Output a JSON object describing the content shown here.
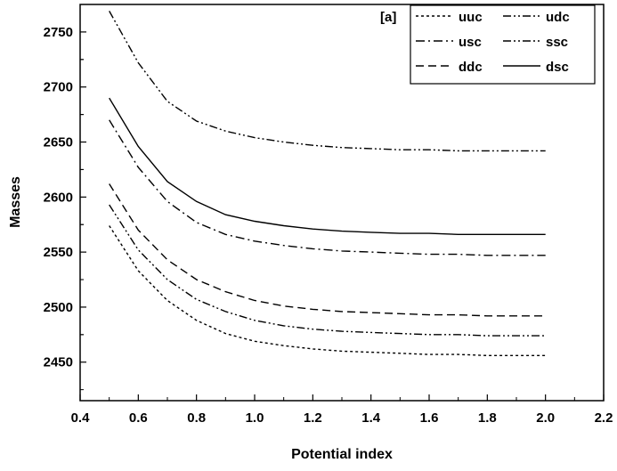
{
  "chart_data": {
    "type": "line",
    "panel_label": "[a]",
    "xlabel": "Potential index",
    "ylabel": "Masses",
    "xlim": [
      0.4,
      2.2
    ],
    "ylim": [
      2415,
      2775
    ],
    "x_ticks": [
      "0.4",
      "0.6",
      "0.8",
      "1.0",
      "1.2",
      "1.4",
      "1.6",
      "1.8",
      "2.0",
      "2.2"
    ],
    "y_ticks": [
      "2450",
      "2500",
      "2550",
      "2600",
      "2650",
      "2700",
      "2750"
    ],
    "grid": false,
    "legend_position": "top-right",
    "x": [
      0.5,
      0.6,
      0.7,
      0.8,
      0.9,
      1.0,
      1.1,
      1.2,
      1.3,
      1.4,
      1.5,
      1.6,
      1.7,
      1.8,
      1.9,
      2.0
    ],
    "series": [
      {
        "name": "uuc",
        "dash": "3,3",
        "values": [
          2574,
          2533,
          2506,
          2488,
          2476,
          2469,
          2465,
          2462,
          2460,
          2459,
          2458,
          2457,
          2457,
          2456,
          2456,
          2456
        ]
      },
      {
        "name": "udc",
        "dash": "9,3,2,3,2,3",
        "values": [
          2593,
          2552,
          2525,
          2507,
          2496,
          2488,
          2483,
          2480,
          2478,
          2477,
          2476,
          2475,
          2475,
          2474,
          2474,
          2474
        ]
      },
      {
        "name": "usc",
        "dash": "10,4,2,4",
        "values": [
          2670,
          2627,
          2596,
          2577,
          2566,
          2560,
          2556,
          2553,
          2551,
          2550,
          2549,
          2548,
          2548,
          2547,
          2547,
          2547
        ]
      },
      {
        "name": "ssc",
        "dash": "9,3,2,3,2,3",
        "values": [
          2769,
          2722,
          2687,
          2669,
          2660,
          2654,
          2650,
          2647,
          2645,
          2644,
          2643,
          2643,
          2642,
          2642,
          2642,
          2642
        ]
      },
      {
        "name": "ddc",
        "dash": "9,5",
        "values": [
          2612,
          2570,
          2543,
          2525,
          2514,
          2506,
          2501,
          2498,
          2496,
          2495,
          2494,
          2493,
          2493,
          2492,
          2492,
          2492
        ]
      },
      {
        "name": "dsc",
        "dash": "",
        "values": [
          2690,
          2646,
          2614,
          2596,
          2584,
          2578,
          2574,
          2571,
          2569,
          2568,
          2567,
          2567,
          2566,
          2566,
          2566,
          2566
        ]
      }
    ]
  }
}
